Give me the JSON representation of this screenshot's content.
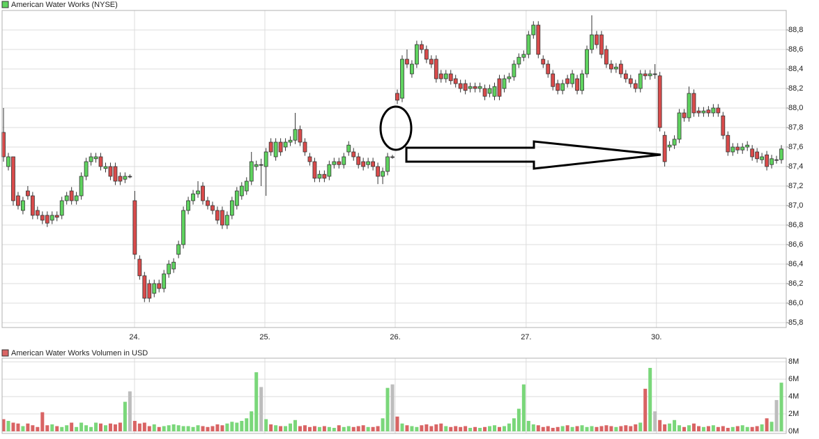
{
  "chart_data": [
    {
      "type": "candlestick",
      "title": "American Water Works (NYSE)",
      "up_color": "#5fd35f",
      "down_color": "#d94b4b",
      "grid": true,
      "xlim": [
        -0.29,
        161
      ],
      "xticks": [
        {
          "value": 26.95,
          "label": "24."
        },
        {
          "value": 53.76,
          "label": "25."
        },
        {
          "value": 80.57,
          "label": "26."
        },
        {
          "value": 107.5,
          "label": "27."
        },
        {
          "value": 134.3,
          "label": "30."
        }
      ],
      "ylim": [
        85.75,
        89.0
      ],
      "yticks": [
        {
          "value": 85.8,
          "label": "85,8"
        },
        {
          "value": 86.0,
          "label": "86,0"
        },
        {
          "value": 86.2,
          "label": "86,2"
        },
        {
          "value": 86.4,
          "label": "86,4"
        },
        {
          "value": 86.6,
          "label": "86,6"
        },
        {
          "value": 86.8,
          "label": "86,8"
        },
        {
          "value": 87.0,
          "label": "87,0"
        },
        {
          "value": 87.2,
          "label": "87,2"
        },
        {
          "value": 87.4,
          "label": "87,4"
        },
        {
          "value": 87.6,
          "label": "87,6"
        },
        {
          "value": 87.8,
          "label": "87,8"
        },
        {
          "value": 88.0,
          "label": "88,0"
        },
        {
          "value": 88.2,
          "label": "88,2"
        },
        {
          "value": 88.4,
          "label": "88,4"
        },
        {
          "value": 88.6,
          "label": "88,6"
        },
        {
          "value": 88.8,
          "label": "88,8"
        }
      ],
      "open": [
        87.75,
        87.4,
        87.5,
        87.1,
        86.95,
        87.15,
        87.1,
        86.95,
        86.9,
        86.9,
        86.85,
        86.9,
        86.9,
        87.05,
        87.15,
        87.05,
        87.1,
        87.3,
        87.45,
        87.48,
        87.5,
        87.38,
        87.4,
        87.4,
        87.3,
        87.27,
        87.3,
        87.05,
        86.45,
        86.28,
        86.2,
        86.1,
        86.2,
        86.15,
        86.3,
        86.35,
        86.5,
        86.6,
        86.95,
        87.05,
        87.12,
        87.2,
        87.05,
        87.0,
        86.95,
        86.95,
        86.8,
        86.9,
        87.0,
        87.1,
        87.15,
        87.25,
        87.4,
        87.42,
        87.4,
        87.65,
        87.5,
        87.65,
        87.6,
        87.65,
        87.67,
        87.78,
        87.65,
        87.5,
        87.45,
        87.28,
        87.32,
        87.3,
        87.42,
        87.45,
        87.42,
        87.55,
        87.55,
        87.5,
        87.45,
        87.42,
        87.45,
        87.4,
        87.3,
        87.35,
        87.5,
        88.15,
        88.1,
        88.5,
        88.35,
        88.45,
        88.65,
        88.6,
        88.5,
        88.5,
        88.35,
        88.3,
        88.35,
        88.3,
        88.25,
        88.25,
        88.2,
        88.22,
        88.2,
        88.2,
        88.15,
        88.12,
        88.3,
        88.2,
        88.3,
        88.32,
        88.45,
        88.52,
        88.55,
        88.75,
        88.85,
        88.5,
        88.45,
        88.35,
        88.25,
        88.18,
        88.3,
        88.25,
        88.3,
        88.18,
        88.35,
        88.6,
        88.75,
        88.75,
        88.6,
        88.45,
        88.4,
        88.45,
        88.35,
        88.3,
        88.25,
        88.2,
        88.35,
        88.33,
        88.35,
        88.33,
        87.72,
        87.6,
        87.62,
        87.68,
        87.95,
        87.9,
        88.15,
        87.97,
        87.95,
        87.98,
        87.95,
        88.0,
        87.92,
        87.72,
        87.55,
        87.6,
        87.57,
        87.6,
        87.58,
        87.55,
        87.47,
        87.52,
        87.42,
        87.47,
        87.47
      ],
      "high": [
        88.0,
        87.54,
        87.5,
        87.14,
        87.09,
        87.2,
        87.14,
        86.99,
        86.94,
        86.94,
        86.94,
        86.94,
        87.09,
        87.14,
        87.19,
        87.14,
        87.34,
        87.49,
        87.54,
        87.54,
        87.54,
        87.44,
        87.44,
        87.44,
        87.34,
        87.34,
        87.32,
        87.15,
        86.49,
        86.32,
        86.24,
        86.24,
        86.24,
        86.34,
        86.44,
        86.46,
        86.64,
        86.99,
        87.09,
        87.16,
        87.25,
        87.24,
        87.09,
        87.04,
        86.99,
        86.99,
        86.94,
        87.09,
        87.19,
        87.24,
        87.29,
        87.55,
        87.46,
        87.48,
        87.59,
        87.69,
        87.69,
        87.69,
        87.69,
        87.71,
        87.95,
        87.82,
        87.69,
        87.54,
        87.49,
        87.36,
        87.36,
        87.46,
        87.49,
        87.49,
        87.54,
        87.66,
        87.59,
        87.54,
        87.49,
        87.49,
        87.49,
        87.44,
        87.39,
        87.54,
        87.52,
        88.19,
        88.54,
        88.6,
        88.49,
        88.69,
        88.69,
        88.64,
        88.54,
        88.54,
        88.39,
        88.39,
        88.39,
        88.34,
        88.29,
        88.29,
        88.26,
        88.26,
        88.26,
        88.24,
        88.24,
        88.26,
        88.34,
        88.34,
        88.36,
        88.49,
        88.56,
        88.59,
        88.79,
        88.89,
        88.89,
        88.54,
        88.49,
        88.39,
        88.29,
        88.29,
        88.34,
        88.39,
        88.34,
        88.39,
        88.64,
        88.95,
        88.79,
        88.79,
        88.64,
        88.49,
        88.46,
        88.49,
        88.39,
        88.34,
        88.29,
        88.39,
        88.39,
        88.39,
        88.45,
        88.37,
        87.76,
        87.66,
        87.72,
        87.99,
        87.99,
        88.22,
        88.19,
        88.01,
        88.01,
        88.02,
        88.04,
        88.04,
        87.96,
        87.76,
        87.64,
        87.64,
        87.64,
        87.66,
        87.62,
        87.59,
        87.54,
        87.56,
        87.52,
        87.51,
        87.62
      ],
      "low": [
        87.45,
        87.36,
        87.0,
        86.96,
        86.91,
        87.06,
        86.86,
        86.86,
        86.81,
        86.78,
        86.81,
        86.84,
        86.86,
        87.01,
        87.01,
        87.01,
        87.06,
        87.26,
        87.41,
        87.44,
        87.36,
        87.34,
        87.26,
        87.21,
        87.21,
        87.23,
        87.28,
        86.45,
        86.24,
        86.01,
        86.01,
        86.06,
        86.11,
        86.11,
        86.26,
        86.31,
        86.46,
        86.56,
        86.91,
        87.01,
        87.08,
        87.01,
        86.96,
        86.91,
        86.81,
        86.76,
        86.76,
        86.86,
        86.96,
        87.06,
        87.11,
        87.21,
        87.36,
        87.2,
        87.1,
        87.51,
        87.46,
        87.51,
        87.56,
        87.61,
        87.63,
        87.61,
        87.51,
        87.41,
        87.24,
        87.24,
        87.24,
        87.26,
        87.38,
        87.38,
        87.38,
        87.51,
        87.46,
        87.38,
        87.36,
        87.38,
        87.36,
        87.22,
        87.22,
        87.31,
        87.48,
        88.04,
        88.06,
        88.41,
        88.31,
        88.41,
        88.56,
        88.46,
        88.41,
        88.26,
        88.26,
        88.26,
        88.24,
        88.21,
        88.16,
        88.14,
        88.16,
        88.16,
        88.16,
        88.08,
        88.11,
        88.08,
        88.08,
        88.16,
        88.26,
        88.28,
        88.41,
        88.48,
        88.51,
        88.71,
        88.51,
        88.41,
        88.31,
        88.18,
        88.14,
        88.14,
        88.21,
        88.21,
        88.14,
        88.14,
        88.31,
        88.56,
        88.61,
        88.51,
        88.41,
        88.36,
        88.36,
        88.31,
        88.26,
        88.21,
        88.16,
        88.16,
        88.29,
        88.29,
        88.3,
        87.76,
        87.4,
        87.56,
        87.58,
        87.64,
        87.86,
        87.86,
        87.91,
        87.91,
        87.91,
        87.91,
        87.91,
        87.91,
        87.68,
        87.51,
        87.51,
        87.53,
        87.53,
        87.56,
        87.46,
        87.44,
        87.43,
        87.36,
        87.38,
        87.43,
        87.43
      ],
      "close": [
        87.5,
        87.5,
        87.05,
        87.0,
        87.05,
        87.1,
        86.9,
        86.9,
        86.85,
        86.82,
        86.9,
        86.88,
        87.05,
        87.1,
        87.05,
        87.1,
        87.3,
        87.45,
        87.5,
        87.5,
        87.4,
        87.4,
        87.3,
        87.25,
        87.25,
        87.3,
        87.3,
        86.5,
        86.28,
        86.05,
        86.05,
        86.2,
        86.15,
        86.3,
        86.4,
        86.42,
        86.6,
        86.95,
        87.05,
        87.12,
        87.15,
        87.05,
        87.0,
        86.95,
        86.85,
        86.8,
        86.9,
        87.05,
        87.15,
        87.2,
        87.25,
        87.45,
        87.42,
        87.42,
        87.55,
        87.55,
        87.65,
        87.55,
        87.65,
        87.67,
        87.78,
        87.65,
        87.55,
        87.45,
        87.28,
        87.32,
        87.28,
        87.42,
        87.45,
        87.42,
        87.5,
        87.62,
        87.5,
        87.42,
        87.4,
        87.45,
        87.4,
        87.3,
        87.35,
        87.5,
        87.5,
        88.08,
        88.5,
        88.45,
        88.45,
        88.65,
        88.6,
        88.5,
        88.45,
        88.3,
        88.3,
        88.35,
        88.28,
        88.25,
        88.2,
        88.18,
        88.22,
        88.2,
        88.22,
        88.12,
        88.2,
        88.22,
        88.12,
        88.3,
        88.32,
        88.45,
        88.52,
        88.55,
        88.75,
        88.85,
        88.55,
        88.45,
        88.35,
        88.22,
        88.18,
        88.25,
        88.25,
        88.35,
        88.18,
        88.35,
        88.6,
        88.75,
        88.65,
        88.55,
        88.45,
        88.4,
        88.42,
        88.35,
        88.3,
        88.25,
        88.2,
        88.35,
        88.33,
        88.35,
        88.35,
        87.8,
        87.45,
        87.62,
        87.68,
        87.95,
        87.9,
        88.15,
        87.95,
        87.95,
        87.97,
        87.95,
        88.0,
        87.95,
        87.72,
        87.55,
        87.6,
        87.57,
        87.6,
        87.62,
        87.5,
        87.48,
        87.5,
        87.4,
        87.48,
        87.47,
        87.58
      ]
    },
    {
      "type": "bar",
      "title": "American Water Works Volumen in USD",
      "up_color": "#7ad77a",
      "down_color": "#d96464",
      "flat_color": "#bdbdbd",
      "ylim": [
        0,
        8.5
      ],
      "yticks": [
        {
          "value": 0,
          "label": "0M"
        },
        {
          "value": 2,
          "label": "2M"
        },
        {
          "value": 4,
          "label": "4M"
        },
        {
          "value": 6,
          "label": "6M"
        },
        {
          "value": 8,
          "label": "8M"
        }
      ],
      "values": [
        1.4,
        1.2,
        1.0,
        0.9,
        0.6,
        0.9,
        0.7,
        0.5,
        2.2,
        0.7,
        0.8,
        0.6,
        0.5,
        0.7,
        1.0,
        0.5,
        1.0,
        0.7,
        0.5,
        1.0,
        0.9,
        0.7,
        0.9,
        0.8,
        1.0,
        3.4,
        4.6,
        1.2,
        0.9,
        1.0,
        0.6,
        0.8,
        0.5,
        0.6,
        0.7,
        0.8,
        0.7,
        0.6,
        0.6,
        0.5,
        0.7,
        0.6,
        0.5,
        0.6,
        0.8,
        0.7,
        0.9,
        1.1,
        1.0,
        1.2,
        1.5,
        2.3,
        6.8,
        5.1,
        1.4,
        0.8,
        0.7,
        0.6,
        0.6,
        0.9,
        1.3,
        0.6,
        0.7,
        0.5,
        0.6,
        0.5,
        0.6,
        0.5,
        0.4,
        0.7,
        0.5,
        0.6,
        0.5,
        0.6,
        0.7,
        0.5,
        0.5,
        0.6,
        1.5,
        5.0,
        5.4,
        1.7,
        0.9,
        0.7,
        0.6,
        0.5,
        0.7,
        0.8,
        0.6,
        0.8,
        0.9,
        0.6,
        0.5,
        0.6,
        0.5,
        0.6,
        0.4,
        0.5,
        0.4,
        0.5,
        0.6,
        0.7,
        0.5,
        0.6,
        0.9,
        1.5,
        2.6,
        5.4,
        1.2,
        0.8,
        0.7,
        0.5,
        0.6,
        0.4,
        0.5,
        0.6,
        0.7,
        0.5,
        0.6,
        0.7,
        0.5,
        0.6,
        0.5,
        0.6,
        0.7,
        0.6,
        0.5,
        0.6,
        0.7,
        0.6,
        0.8,
        1.0,
        4.9,
        7.3,
        2.3,
        1.3,
        0.8,
        0.9,
        1.3,
        0.7,
        0.5,
        0.7,
        0.9,
        0.6,
        0.5,
        0.6,
        0.7,
        0.5,
        0.6,
        0.4,
        0.5,
        0.6,
        0.7,
        0.5,
        0.5,
        0.6,
        0.8,
        1.5,
        1.1,
        3.6,
        5.6
      ]
    }
  ]
}
